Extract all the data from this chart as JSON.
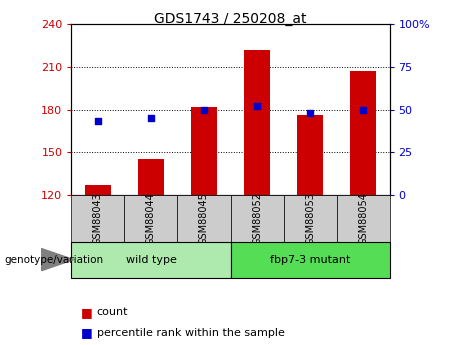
{
  "title": "GDS1743 / 250208_at",
  "samples": [
    "GSM88043",
    "GSM88044",
    "GSM88045",
    "GSM88052",
    "GSM88053",
    "GSM88054"
  ],
  "count_values": [
    127,
    145,
    182,
    222,
    176,
    207
  ],
  "percentile_values": [
    43,
    45,
    50,
    52,
    48,
    50
  ],
  "groups": [
    {
      "label": "wild type",
      "samples_idx": [
        0,
        1,
        2
      ],
      "color": "#aeeaae"
    },
    {
      "label": "fbp7-3 mutant",
      "samples_idx": [
        3,
        4,
        5
      ],
      "color": "#55dd55"
    }
  ],
  "genotype_label": "genotype/variation",
  "legend_count_label": "count",
  "legend_percentile_label": "percentile rank within the sample",
  "ylim_left": [
    120,
    240
  ],
  "ylim_right": [
    0,
    100
  ],
  "yticks_left": [
    120,
    150,
    180,
    210,
    240
  ],
  "yticks_right": [
    0,
    25,
    50,
    75,
    100
  ],
  "bar_color": "#cc0000",
  "dot_color": "#0000cc",
  "plot_bg": "#ffffff",
  "tick_label_bg": "#cccccc",
  "left_tick_color": "#cc0000",
  "right_tick_color": "#0000cc",
  "bar_width": 0.5
}
